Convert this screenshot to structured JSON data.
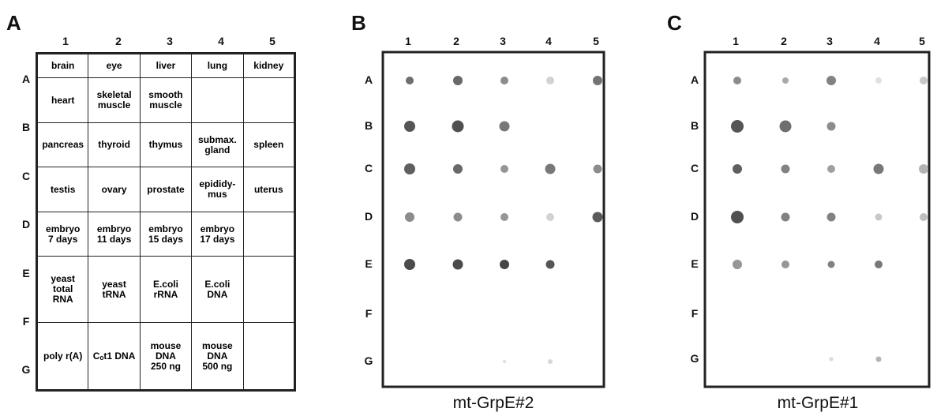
{
  "panels": [
    {
      "label": "A",
      "columns": [
        "1",
        "2",
        "3",
        "4",
        "5"
      ],
      "rows": [
        "A",
        "B",
        "C",
        "D",
        "E",
        "F",
        "G"
      ],
      "cells": [
        [
          "brain",
          "eye",
          "liver",
          "lung",
          "kidney"
        ],
        [
          "heart",
          "skeletal\nmuscle",
          "smooth\nmuscle",
          null,
          null
        ],
        [
          "pancreas",
          "thyroid",
          "thymus",
          "submax.\ngland",
          "spleen"
        ],
        [
          "testis",
          "ovary",
          "prostate",
          "epididy-\nmus",
          "uterus"
        ],
        [
          "embryo\n7 days",
          "embryo\n11 days",
          "embryo\n15 days",
          "embryo\n17 days",
          null
        ],
        [
          "yeast\ntotal\nRNA",
          "yeast\ntRNA",
          "E.coli\nrRNA",
          "E.coli\nDNA",
          null
        ],
        [
          "poly r(A)",
          "Cₒt1 DNA",
          "mouse\nDNA\n250 ng",
          "mouse\nDNA\n500 ng",
          null
        ]
      ]
    },
    {
      "label": "B",
      "columns": [
        "1",
        "2",
        "3",
        "4",
        "5"
      ],
      "rows": [
        "A",
        "B",
        "C",
        "D",
        "E",
        "F",
        "G"
      ],
      "caption": "mt-GrpE#2"
    },
    {
      "label": "C",
      "columns": [
        "1",
        "2",
        "3",
        "4",
        "5"
      ],
      "rows": [
        "A",
        "B",
        "C",
        "D",
        "E",
        "F",
        "G"
      ],
      "caption": "mt-GrpE#1"
    }
  ]
}
